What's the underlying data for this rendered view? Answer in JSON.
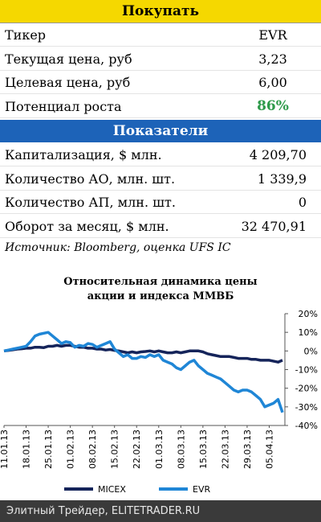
{
  "buy_header": "Покупать",
  "buy_rows": [
    [
      "Тикер",
      "EVR"
    ],
    [
      "Текущая цена, руб",
      "3,23"
    ],
    [
      "Целевая цена, руб",
      "6,00"
    ],
    [
      "Потенциал роста",
      "86%"
    ]
  ],
  "indicators_header": "Показатели",
  "indicator_rows": [
    [
      "Капитализация, $ млн.",
      "4 209,70"
    ],
    [
      "Количество АО, млн. шт.",
      "1 339,9"
    ],
    [
      "Количество АП, млн. шт.",
      "0"
    ],
    [
      "Оборот за месяц, $ млн.",
      "32 470,91"
    ]
  ],
  "source": "Источник: Bloomberg, оценка UFS IC",
  "chart_data": {
    "type": "line",
    "title": "Относительная динамика цены\nакции и индекса ММВБ",
    "categories": [
      "11.01.13",
      null,
      null,
      null,
      null,
      "18.01.13",
      null,
      null,
      null,
      null,
      "25.01.13",
      null,
      null,
      null,
      null,
      "01.02.13",
      null,
      null,
      null,
      null,
      "08.02.13",
      null,
      null,
      null,
      null,
      "15.02.13",
      null,
      null,
      null,
      null,
      "22.02.13",
      null,
      null,
      null,
      null,
      "01.03.13",
      null,
      null,
      null,
      null,
      "08.03.13",
      null,
      null,
      null,
      null,
      "15.03.13",
      null,
      null,
      null,
      null,
      "22.03.13",
      null,
      null,
      null,
      null,
      "29.03.13",
      null,
      null,
      null,
      null,
      "05.04.13",
      null,
      null,
      null
    ],
    "series": [
      {
        "name": "MICEX",
        "color": "#15245a",
        "values": [
          0,
          0.3,
          0.6,
          1,
          1.2,
          1.5,
          1.5,
          2,
          2,
          1.8,
          2.5,
          2.5,
          3,
          2.5,
          3,
          3,
          2.5,
          2,
          2,
          1.5,
          1.5,
          1,
          1,
          0.5,
          0.8,
          0.3,
          0,
          -0.5,
          -1,
          -0.5,
          -1,
          -0.5,
          -0.3,
          0,
          -0.5,
          0,
          -0.5,
          -1,
          -1,
          -0.5,
          -1,
          -0.5,
          0,
          0,
          0,
          -0.5,
          -1.5,
          -2,
          -2.5,
          -3,
          -3,
          -3,
          -3.5,
          -4,
          -4,
          -4,
          -4.5,
          -4.5,
          -5,
          -5,
          -5,
          -5.5,
          -6,
          -5
        ]
      },
      {
        "name": "EVR",
        "color": "#1f86d6",
        "values": [
          0,
          0.5,
          1,
          1.5,
          2,
          2.5,
          5,
          8,
          9,
          9.5,
          10,
          8,
          6,
          4,
          5,
          4.5,
          2,
          3,
          2.5,
          4,
          3.5,
          2,
          3,
          4,
          5,
          1,
          -1,
          -3,
          -2,
          -4,
          -4,
          -3,
          -3.5,
          -2,
          -3,
          -2,
          -5,
          -6,
          -7,
          -9,
          -10,
          -8,
          -6,
          -5,
          -8,
          -10,
          -12,
          -13,
          -14,
          -15,
          -17,
          -19,
          -21,
          -22,
          -21,
          -21,
          -22,
          -24,
          -26,
          -30,
          -29,
          -28,
          -26,
          -33
        ]
      }
    ],
    "ylim": [
      -40,
      20
    ],
    "yticks": [
      {
        "value": 20,
        "label": "20%"
      },
      {
        "value": 10,
        "label": "10%"
      },
      {
        "value": 0,
        "label": "0%"
      },
      {
        "value": -10,
        "label": "-10%"
      },
      {
        "value": -20,
        "label": "-20%"
      },
      {
        "value": -30,
        "label": "-30%"
      },
      {
        "value": -40,
        "label": "-40%"
      }
    ]
  },
  "footer": "Элитный Трейдер, ELITETRADER.RU"
}
